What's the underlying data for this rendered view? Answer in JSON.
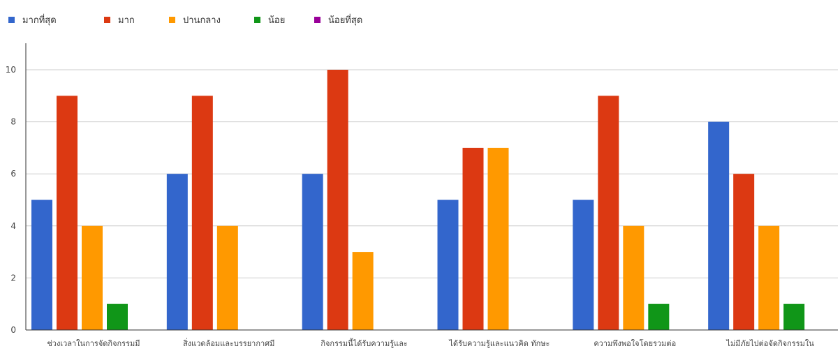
{
  "chart_data": {
    "type": "bar",
    "title": "",
    "xlabel": "",
    "ylabel": "",
    "ylim": [
      0,
      10
    ],
    "yticks": [
      0,
      2,
      4,
      6,
      8,
      10
    ],
    "grid": true,
    "legend_position": "top-left",
    "categories": [
      "ช่วงเวลาในการจัดกิจกรรมมี",
      "สิ่งแวดล้อมและบรรยากาศมี",
      "กิจกรรมนี้ได้รับความรู้และ",
      "ได้รับความรู้และแนวคิด ทักษะ",
      "ความพึงพอใจโดยรวมต่อ",
      "ไม่มีภัยไปต่อจัดกิจกรรมใน"
    ],
    "series": [
      {
        "name": "มากที่สุด",
        "color": "#3366cc",
        "values": [
          5,
          6,
          6,
          5,
          5,
          8
        ]
      },
      {
        "name": "มาก",
        "color": "#dc3912",
        "values": [
          9,
          9,
          10,
          7,
          9,
          6
        ]
      },
      {
        "name": "ปานกลาง",
        "color": "#ff9900",
        "values": [
          4,
          4,
          3,
          7,
          4,
          4
        ]
      },
      {
        "name": "น้อย",
        "color": "#109618",
        "values": [
          1,
          0,
          0,
          0,
          1,
          1
        ]
      },
      {
        "name": "น้อยที่สุด",
        "color": "#990099",
        "values": [
          0,
          0,
          0,
          0,
          0,
          0
        ]
      }
    ]
  }
}
